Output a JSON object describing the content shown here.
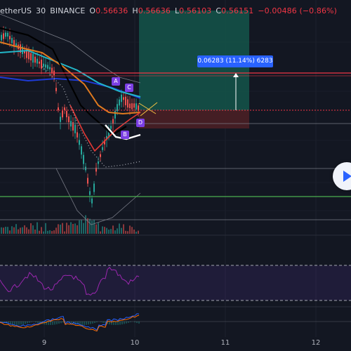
{
  "legend": {
    "symbol": "etherUS",
    "interval": "30",
    "exchange": "BINANCE",
    "open_label": "O",
    "open": "0.56636",
    "high_label": "H",
    "high": "0.56636",
    "low_label": "L",
    "low": "0.56103",
    "close_label": "C",
    "close": "0.56151",
    "change": "−0.00486 (−0.86%)"
  },
  "measure": {
    "label": "0.06283 (11.14%) 6283"
  },
  "pattern_points": [
    "A",
    "B",
    "C",
    "D"
  ],
  "time_axis": [
    "9",
    "10",
    "11",
    "12"
  ],
  "colors": {
    "background": "#131722",
    "up_candle": "#26a69a",
    "down_candle": "#ef5350",
    "measure_accent": "#2962ff",
    "pattern_accent": "#7b3fe4",
    "price_line": "#f23645",
    "support_line": "#4caf50",
    "rsi_line": "#9c27b0",
    "target_zone": "#14554a",
    "stop_zone": "#4a1f25"
  },
  "icons": {
    "play": "play-icon"
  }
}
